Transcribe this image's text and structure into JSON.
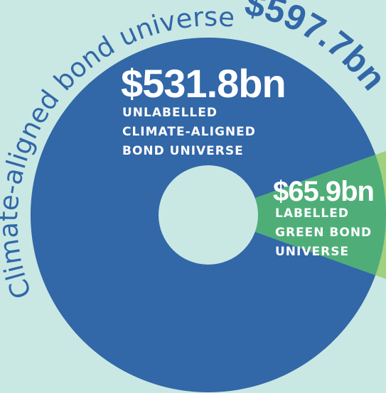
{
  "chart_data": {
    "type": "pie",
    "total_label": "$597.7bn",
    "ring_label": "Climate-aligned bond universe",
    "slices": [
      {
        "value": 531.8,
        "value_label": "$531.8bn",
        "caption": [
          "UNLABELLED",
          "CLIMATE-ALIGNED",
          "BOND UNIVERSE"
        ],
        "color": "#3267a8"
      },
      {
        "value": 65.9,
        "value_label": "$65.9bn",
        "caption": [
          "LABELLED",
          "GREEN BOND",
          "UNIVERSE"
        ],
        "color": "#4fae78"
      }
    ],
    "colors": {
      "background": "#c9e8e4",
      "ring_text": "#3267a8",
      "total_text": "#3267a8",
      "outer_green": "#9fd17f",
      "label_text": "#ffffff"
    }
  }
}
